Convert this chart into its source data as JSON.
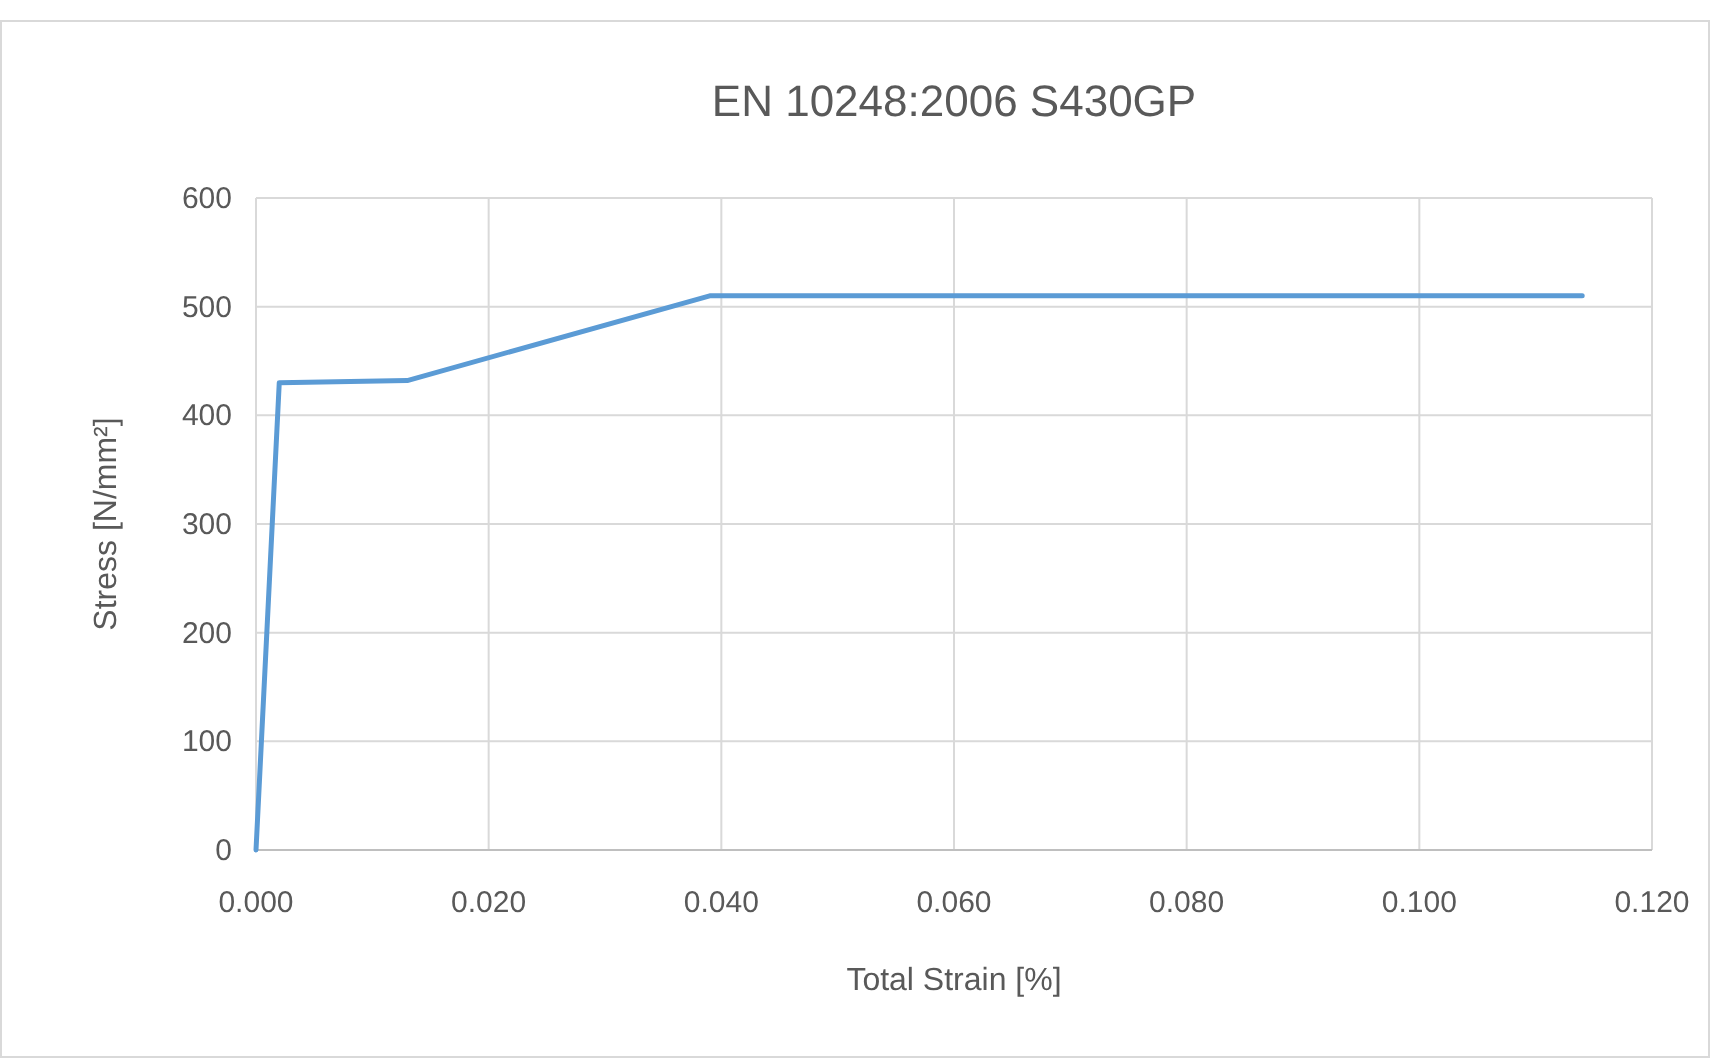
{
  "chart_data": {
    "type": "line",
    "title": "EN 10248:2006 S430GP",
    "xlabel": "Total Strain [%]",
    "ylabel": "Stress [N/mm²]",
    "x": [
      0,
      0.002,
      0.013,
      0.039,
      0.114
    ],
    "series": [
      {
        "color": "#5b9bd5",
        "values": [
          0,
          430,
          432,
          510,
          510
        ]
      }
    ],
    "xlim": [
      0,
      0.12
    ],
    "xticks": [
      {
        "value": 0,
        "label": "0.000"
      },
      {
        "value": 0.02,
        "label": "0.020"
      },
      {
        "value": 0.04,
        "label": "0.040"
      },
      {
        "value": 0.06,
        "label": "0.060"
      },
      {
        "value": 0.08,
        "label": "0.080"
      },
      {
        "value": 0.1,
        "label": "0.100"
      },
      {
        "value": 0.12,
        "label": "0.120"
      }
    ],
    "ylim": [
      0,
      600
    ],
    "yticks": [
      0,
      100,
      200,
      300,
      400,
      500,
      600
    ],
    "grid": true,
    "marker": "none",
    "line_style": "solid"
  }
}
